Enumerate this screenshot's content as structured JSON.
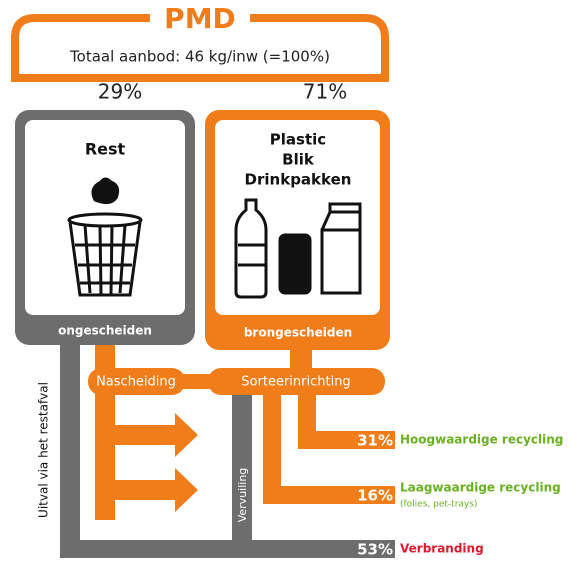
{
  "header": {
    "title": "PMD",
    "supply": "Totaal aanbod: 46 kg/inw (=100%)",
    "share_left": "29%",
    "share_right": "71%"
  },
  "boxes": [
    {
      "title": "Rest",
      "footer": "ongescheiden"
    },
    {
      "title_lines": [
        "Plastic",
        "Blik",
        "Drinkpakken"
      ],
      "footer": "brongescheiden"
    }
  ],
  "processes": [
    "Nascheiding",
    "Sorteerinrichting"
  ],
  "flows": {
    "left": "Uitval via het restafval",
    "middle": "Vervuiling"
  },
  "outcomes": [
    {
      "percent": "31%",
      "label": "Hoogwaardige recycling"
    },
    {
      "percent": "16%",
      "label": "Laagwaardige recycling",
      "note": "(folies, pet-trays)"
    },
    {
      "percent": "53%",
      "label": "Verbranding"
    }
  ]
}
